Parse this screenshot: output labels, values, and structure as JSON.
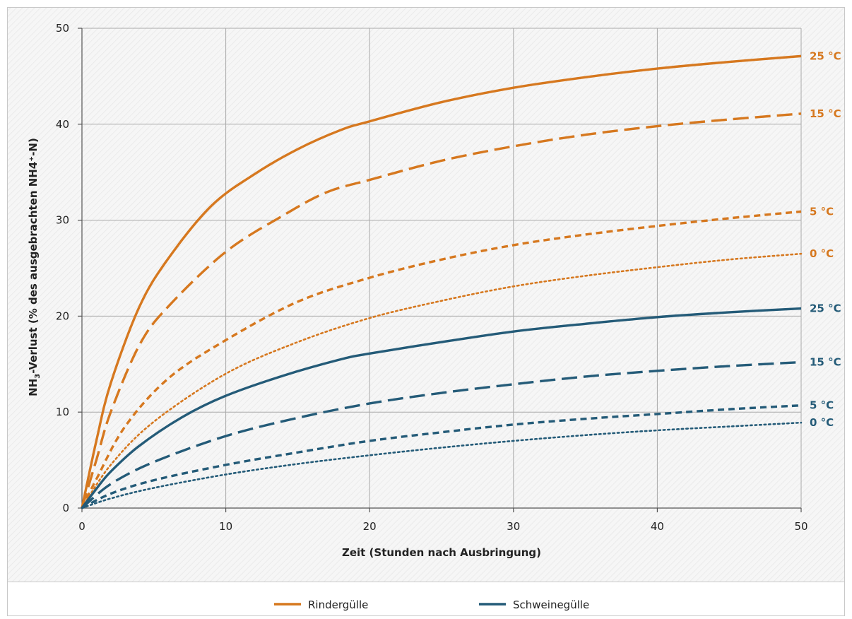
{
  "chart_data": {
    "type": "line",
    "xlabel": "Zeit (Stunden nach Ausbringung)",
    "ylabel_parts": {
      "pre": "NH",
      "sub": "3",
      "post": "-Verlust (% des ausgebrachten NH4⁺-N)"
    },
    "xlim": [
      0,
      50
    ],
    "ylim": [
      0,
      50
    ],
    "xticks": [
      0,
      10,
      20,
      30,
      40,
      50
    ],
    "yticks": [
      0,
      10,
      20,
      30,
      40,
      50
    ],
    "grid": true,
    "legend_position": "bottom-center",
    "legend": [
      {
        "name": "Rindergülle",
        "color": "#d6781f"
      },
      {
        "name": "Schweinegülle",
        "color": "#245b78"
      }
    ],
    "series": [
      {
        "group": "Rindergülle",
        "label": "25 °C",
        "color": "#d6781f",
        "style": "solid",
        "x": [
          0,
          1,
          2,
          4,
          6,
          9,
          12,
          15,
          18,
          20,
          25,
          30,
          35,
          40,
          45,
          50
        ],
        "y": [
          0,
          7,
          13,
          21,
          26,
          31.5,
          34.8,
          37.4,
          39.4,
          40.3,
          42.3,
          43.8,
          44.9,
          45.8,
          46.5,
          47.1
        ]
      },
      {
        "group": "Rindergülle",
        "label": "15 °C",
        "color": "#d6781f",
        "style": "dash",
        "x": [
          0,
          1,
          2,
          4,
          6,
          10,
          14,
          17,
          20,
          25,
          30,
          35,
          40,
          45,
          50
        ],
        "y": [
          0,
          5,
          10,
          17,
          21,
          26.7,
          30.5,
          32.9,
          34.2,
          36.2,
          37.7,
          38.9,
          39.8,
          40.5,
          41.1
        ]
      },
      {
        "group": "Rindergülle",
        "label": "5 °C",
        "color": "#d6781f",
        "style": "shortdash",
        "x": [
          0,
          1,
          3,
          6,
          10,
          15,
          20,
          25,
          30,
          35,
          40,
          45,
          50
        ],
        "y": [
          0,
          3,
          8.5,
          13.5,
          17.5,
          21.5,
          24,
          25.9,
          27.4,
          28.5,
          29.4,
          30.2,
          30.9
        ]
      },
      {
        "group": "Rindergülle",
        "label": "0 °C",
        "color": "#d6781f",
        "style": "dot",
        "x": [
          0,
          2,
          5,
          10,
          15,
          20,
          25,
          30,
          35,
          40,
          45,
          50
        ],
        "y": [
          0,
          4.5,
          9,
          14,
          17.3,
          19.8,
          21.6,
          23.1,
          24.2,
          25.1,
          25.9,
          26.5
        ]
      },
      {
        "group": "Schweinegülle",
        "label": "25 °C",
        "color": "#245b78",
        "style": "solid",
        "x": [
          0,
          1,
          2,
          4,
          7,
          10,
          14,
          18,
          20,
          25,
          30,
          35,
          40,
          45,
          50
        ],
        "y": [
          0,
          2,
          3.8,
          6.5,
          9.5,
          11.7,
          13.8,
          15.5,
          16.1,
          17.3,
          18.4,
          19.2,
          19.9,
          20.4,
          20.8
        ]
      },
      {
        "group": "Schweinegülle",
        "label": "15 °C",
        "color": "#245b78",
        "style": "dash",
        "x": [
          0,
          2,
          5,
          10,
          15,
          20,
          25,
          30,
          35,
          40,
          45,
          50
        ],
        "y": [
          0,
          2.5,
          4.8,
          7.5,
          9.4,
          10.9,
          12,
          12.9,
          13.7,
          14.3,
          14.8,
          15.2
        ]
      },
      {
        "group": "Schweinegülle",
        "label": "5 °C",
        "color": "#245b78",
        "style": "shortdash",
        "x": [
          0,
          2,
          5,
          10,
          15,
          20,
          25,
          30,
          35,
          40,
          45,
          50
        ],
        "y": [
          0,
          1.5,
          2.9,
          4.5,
          5.8,
          7,
          7.9,
          8.7,
          9.3,
          9.8,
          10.3,
          10.7
        ]
      },
      {
        "group": "Schweinegülle",
        "label": "0 °C",
        "color": "#245b78",
        "style": "dot",
        "x": [
          0,
          2,
          5,
          10,
          15,
          20,
          25,
          30,
          35,
          40,
          45,
          50
        ],
        "y": [
          0,
          1,
          2.1,
          3.5,
          4.6,
          5.5,
          6.3,
          7,
          7.6,
          8.1,
          8.5,
          8.9
        ]
      }
    ]
  }
}
